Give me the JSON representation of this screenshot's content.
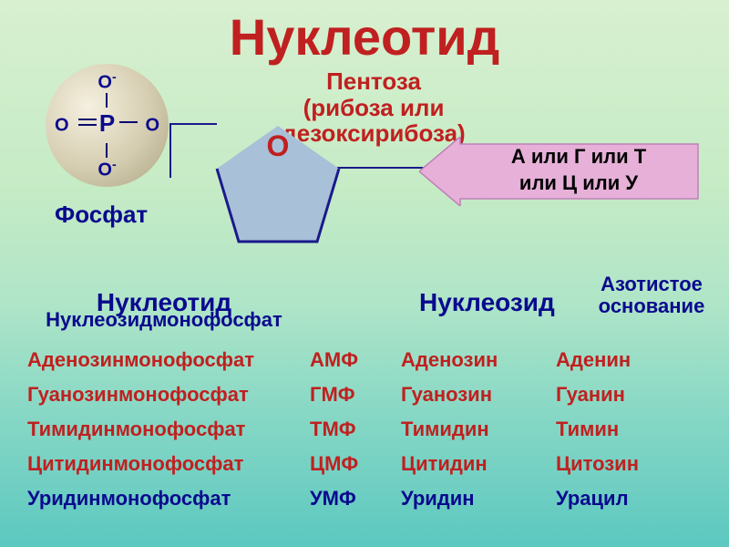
{
  "title": "Нуклеотид",
  "title_color": "#c02020",
  "pentose": {
    "line1": "Пентоза",
    "line2": "(рибоза или",
    "line3": "дезоксирибоза)",
    "color": "#c02020"
  },
  "phosphate": {
    "center": "P",
    "o_top": "O",
    "o_top_sup": "-",
    "o_bottom": "O",
    "o_bottom_sup": "-",
    "o_left": "O",
    "o_right": "O",
    "label": "Фосфат",
    "label_color": "#0a0a8e",
    "atom_color": "#0a0a8e"
  },
  "pentagon": {
    "fill": "#a8c0d8",
    "stroke": "#1a1a8a",
    "o_label": "O",
    "o_color": "#c02020"
  },
  "base_arrow": {
    "line1": "А или Г или Т",
    "line2": "или Ц или У",
    "fill": "#e6b0d8",
    "stroke": "#c080b8"
  },
  "headers": {
    "nucleotide": "Нуклеотид",
    "nucleotide_sub": "Нуклеозидмонофосфат",
    "nucleoside": "Нуклеозид",
    "base": "Азотистое основание",
    "color": "#0a0a8e"
  },
  "rows": [
    {
      "name": "Аденозинмонофосфат",
      "abbr": "АМФ",
      "nucleoside": "Аденозин",
      "base": "Аденин",
      "color": "#c02020"
    },
    {
      "name": "Гуанозинмонофосфат",
      "abbr": "ГМФ",
      "nucleoside": "Гуанозин",
      "base": "Гуанин",
      "color": "#c02020"
    },
    {
      "name": "Тимидинмонофосфат",
      "abbr": "ТМФ",
      "nucleoside": "Тимидин",
      "base": "Тимин",
      "color": "#c02020"
    },
    {
      "name": "Цитидинмонофосфат",
      "abbr": "ЦМФ",
      "nucleoside": "Цитидин",
      "base": "Цитозин",
      "color": "#c02020"
    },
    {
      "name": "Уридинмонофосфат",
      "abbr": "УМФ",
      "nucleoside": "Уридин",
      "base": "Урацил",
      "color": "#0a0a8e"
    }
  ]
}
